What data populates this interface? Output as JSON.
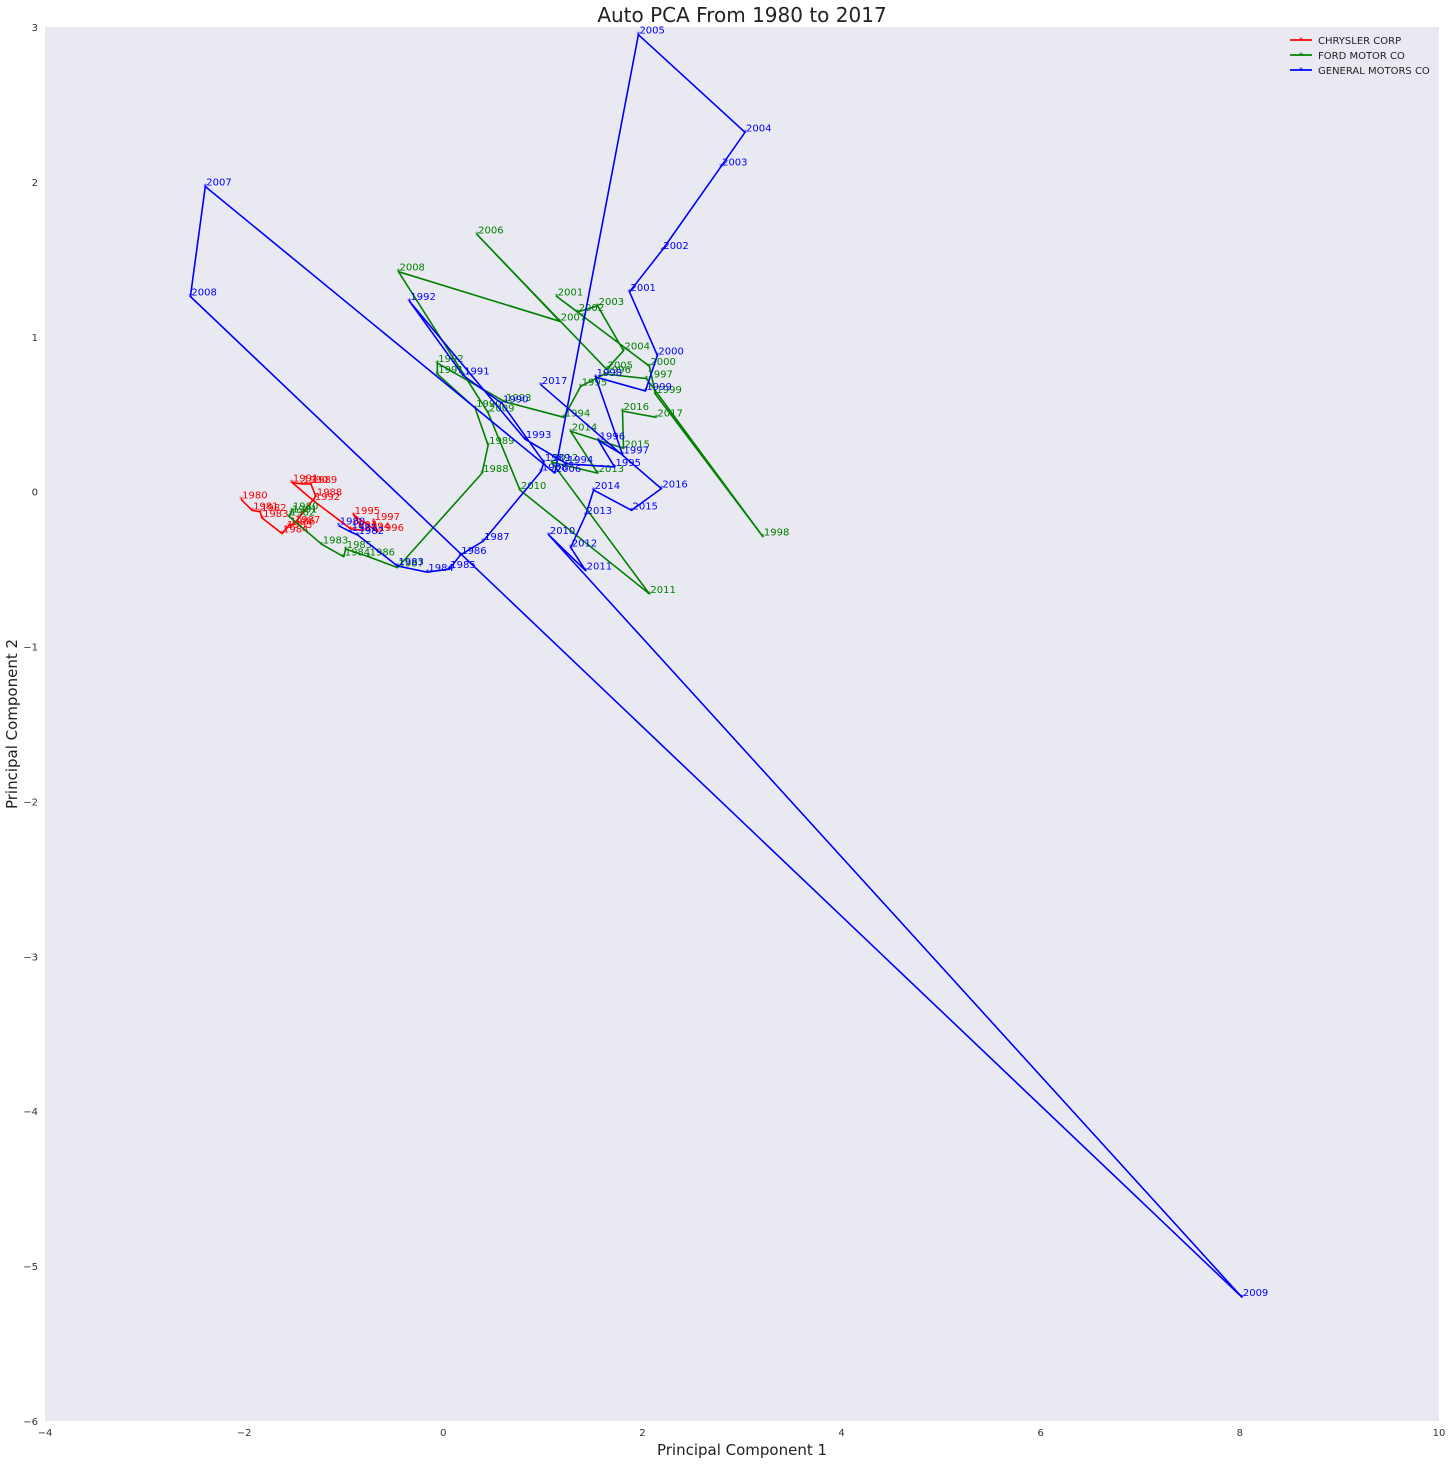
{
  "chart_data": {
    "type": "line",
    "title": "Auto PCA From 1980 to 2017",
    "xlabel": "Principal Component 1",
    "ylabel": "Principal Component 2",
    "xlim": [
      -4,
      10
    ],
    "ylim": [
      -6,
      3
    ],
    "xticks": [
      "−4",
      "−2",
      "0",
      "2",
      "4",
      "6",
      "8",
      "10"
    ],
    "yticks": [
      "−6",
      "−5",
      "−4",
      "−3",
      "−2",
      "−1",
      "0",
      "1",
      "2",
      "3"
    ],
    "grid": false,
    "legend_position": "top-right",
    "background": "#e9e9f2",
    "series": [
      {
        "name": "CHRYSLER CORP",
        "color": "#ff0000",
        "points": [
          {
            "year": "1980",
            "x": -2.03,
            "y": -0.05
          },
          {
            "year": "1981",
            "x": -1.92,
            "y": -0.12
          },
          {
            "year": "1982",
            "x": -1.84,
            "y": -0.13
          },
          {
            "year": "1983",
            "x": -1.82,
            "y": -0.17
          },
          {
            "year": "1984",
            "x": -1.62,
            "y": -0.27
          },
          {
            "year": "1985",
            "x": -1.58,
            "y": -0.24
          },
          {
            "year": "1986",
            "x": -1.55,
            "y": -0.22
          },
          {
            "year": "1987",
            "x": -1.5,
            "y": -0.21
          },
          {
            "year": "1988",
            "x": -1.28,
            "y": -0.03
          },
          {
            "year": "1989",
            "x": -1.33,
            "y": 0.05
          },
          {
            "year": "1990",
            "x": -1.42,
            "y": 0.05
          },
          {
            "year": "1991",
            "x": -1.52,
            "y": 0.06
          },
          {
            "year": "1992",
            "x": -1.3,
            "y": -0.06
          },
          {
            "year": "1993",
            "x": -0.93,
            "y": -0.24
          },
          {
            "year": "1994",
            "x": -0.8,
            "y": -0.25
          },
          {
            "year": "1995",
            "x": -0.9,
            "y": -0.15
          },
          {
            "year": "1996",
            "x": -0.66,
            "y": -0.26
          },
          {
            "year": "1997",
            "x": -0.7,
            "y": -0.19
          }
        ]
      },
      {
        "name": "FORD MOTOR CO",
        "color": "#008000",
        "points": [
          {
            "year": "1980",
            "x": -1.52,
            "y": -0.12
          },
          {
            "year": "1981",
            "x": -1.53,
            "y": -0.14
          },
          {
            "year": "1982",
            "x": -1.55,
            "y": -0.16
          },
          {
            "year": "1983",
            "x": -1.22,
            "y": -0.34
          },
          {
            "year": "1984",
            "x": -1.0,
            "y": -0.42
          },
          {
            "year": "1985",
            "x": -0.98,
            "y": -0.37
          },
          {
            "year": "1986",
            "x": -0.75,
            "y": -0.42
          },
          {
            "year": "1987",
            "x": -0.46,
            "y": -0.49
          },
          {
            "year": "1988",
            "x": 0.39,
            "y": 0.12
          },
          {
            "year": "1989",
            "x": 0.45,
            "y": 0.3
          },
          {
            "year": "1990",
            "x": 0.32,
            "y": 0.54
          },
          {
            "year": "1991",
            "x": -0.06,
            "y": 0.76
          },
          {
            "year": "1992",
            "x": -0.06,
            "y": 0.83
          },
          {
            "year": "1993",
            "x": 0.62,
            "y": 0.58
          },
          {
            "year": "1994",
            "x": 1.21,
            "y": 0.48
          },
          {
            "year": "1995",
            "x": 1.38,
            "y": 0.68
          },
          {
            "year": "1996",
            "x": 1.62,
            "y": 0.76
          },
          {
            "year": "1997",
            "x": 2.04,
            "y": 0.73
          },
          {
            "year": "1998",
            "x": 3.21,
            "y": -0.29
          },
          {
            "year": "1999",
            "x": 2.13,
            "y": 0.63
          },
          {
            "year": "2000",
            "x": 2.07,
            "y": 0.81
          },
          {
            "year": "2001",
            "x": 1.14,
            "y": 1.26
          },
          {
            "year": "2002",
            "x": 1.35,
            "y": 1.16
          },
          {
            "year": "2003",
            "x": 1.55,
            "y": 1.2
          },
          {
            "year": "2004",
            "x": 1.81,
            "y": 0.91
          },
          {
            "year": "2005",
            "x": 1.64,
            "y": 0.79
          },
          {
            "year": "2006",
            "x": 0.34,
            "y": 1.66
          },
          {
            "year": "2007",
            "x": 1.17,
            "y": 1.1
          },
          {
            "year": "2008",
            "x": -0.45,
            "y": 1.42
          },
          {
            "year": "2009",
            "x": 0.45,
            "y": 0.51
          },
          {
            "year": "2010",
            "x": 0.77,
            "y": 0.01
          },
          {
            "year": "2011",
            "x": 2.07,
            "y": -0.66
          },
          {
            "year": "2012",
            "x": 1.09,
            "y": 0.19
          },
          {
            "year": "2013",
            "x": 1.55,
            "y": 0.12
          },
          {
            "year": "2014",
            "x": 1.28,
            "y": 0.39
          },
          {
            "year": "2015",
            "x": 1.81,
            "y": 0.28
          },
          {
            "year": "2016",
            "x": 1.8,
            "y": 0.52
          },
          {
            "year": "2017",
            "x": 2.14,
            "y": 0.48
          }
        ]
      },
      {
        "name": "GENERAL MOTORS CO",
        "color": "#0000ff",
        "points": [
          {
            "year": "1980",
            "x": -1.05,
            "y": -0.22
          },
          {
            "year": "1981",
            "x": -0.93,
            "y": -0.26
          },
          {
            "year": "1982",
            "x": -0.86,
            "y": -0.28
          },
          {
            "year": "1983",
            "x": -0.46,
            "y": -0.48
          },
          {
            "year": "1984",
            "x": -0.16,
            "y": -0.52
          },
          {
            "year": "1985",
            "x": 0.06,
            "y": -0.5
          },
          {
            "year": "1986",
            "x": 0.17,
            "y": -0.41
          },
          {
            "year": "1987",
            "x": 0.4,
            "y": -0.32
          },
          {
            "year": "1988",
            "x": 0.98,
            "y": 0.13
          },
          {
            "year": "1989",
            "x": 1.01,
            "y": 0.19
          },
          {
            "year": "1990",
            "x": 0.59,
            "y": 0.57
          },
          {
            "year": "1991",
            "x": 0.2,
            "y": 0.75
          },
          {
            "year": "1992",
            "x": -0.34,
            "y": 1.23
          },
          {
            "year": "1993",
            "x": 0.82,
            "y": 0.34
          },
          {
            "year": "1994",
            "x": 1.24,
            "y": 0.18
          },
          {
            "year": "1995",
            "x": 1.72,
            "y": 0.16
          },
          {
            "year": "1996",
            "x": 1.56,
            "y": 0.33
          },
          {
            "year": "1997",
            "x": 1.8,
            "y": 0.24
          },
          {
            "year": "1998",
            "x": 1.53,
            "y": 0.74
          },
          {
            "year": "1999",
            "x": 2.03,
            "y": 0.65
          },
          {
            "year": "2000",
            "x": 2.15,
            "y": 0.88
          },
          {
            "year": "2001",
            "x": 1.87,
            "y": 1.29
          },
          {
            "year": "2002",
            "x": 2.2,
            "y": 1.56
          },
          {
            "year": "2003",
            "x": 2.79,
            "y": 2.1
          },
          {
            "year": "2004",
            "x": 3.03,
            "y": 2.32
          },
          {
            "year": "2005",
            "x": 1.96,
            "y": 2.95
          },
          {
            "year": "2006",
            "x": 1.12,
            "y": 0.12
          },
          {
            "year": "2007",
            "x": -2.39,
            "y": 1.97
          },
          {
            "year": "2008",
            "x": -2.54,
            "y": 1.26
          },
          {
            "year": "2009",
            "x": 8.02,
            "y": -5.2
          },
          {
            "year": "2010",
            "x": 1.06,
            "y": -0.28
          },
          {
            "year": "2011",
            "x": 1.43,
            "y": -0.51
          },
          {
            "year": "2012",
            "x": 1.28,
            "y": -0.36
          },
          {
            "year": "2013",
            "x": 1.43,
            "y": -0.15
          },
          {
            "year": "2014",
            "x": 1.51,
            "y": 0.01
          },
          {
            "year": "2015",
            "x": 1.89,
            "y": -0.12
          },
          {
            "year": "2016",
            "x": 2.19,
            "y": 0.02
          },
          {
            "year": "2017",
            "x": 0.98,
            "y": 0.69
          }
        ]
      }
    ]
  }
}
